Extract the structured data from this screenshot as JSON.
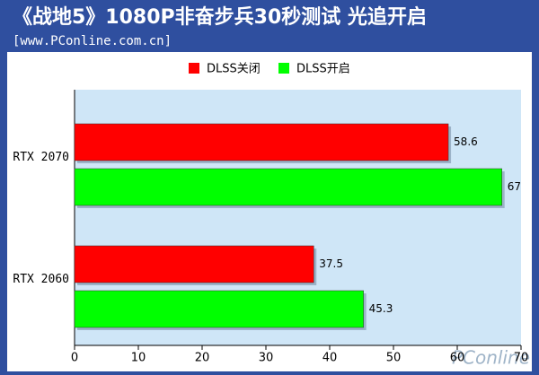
{
  "chart_data": {
    "type": "barh",
    "title": "《战地5》1080P非奋步兵30秒测试 光追开启",
    "subtitle": "[www.PConline.com.cn]",
    "categories": [
      "RTX 2070",
      "RTX 2060"
    ],
    "series": [
      {
        "name": "DLSS关闭",
        "color": "#ff0000",
        "values": [
          58.6,
          37.5
        ]
      },
      {
        "name": "DLSS开启",
        "color": "#00ff00",
        "values": [
          67,
          45.3
        ]
      }
    ],
    "xlim": [
      0,
      70
    ],
    "xticks": [
      0,
      10,
      20,
      30,
      40,
      50,
      60,
      70
    ],
    "grid": false,
    "legend": "top",
    "watermark": "PConline"
  }
}
